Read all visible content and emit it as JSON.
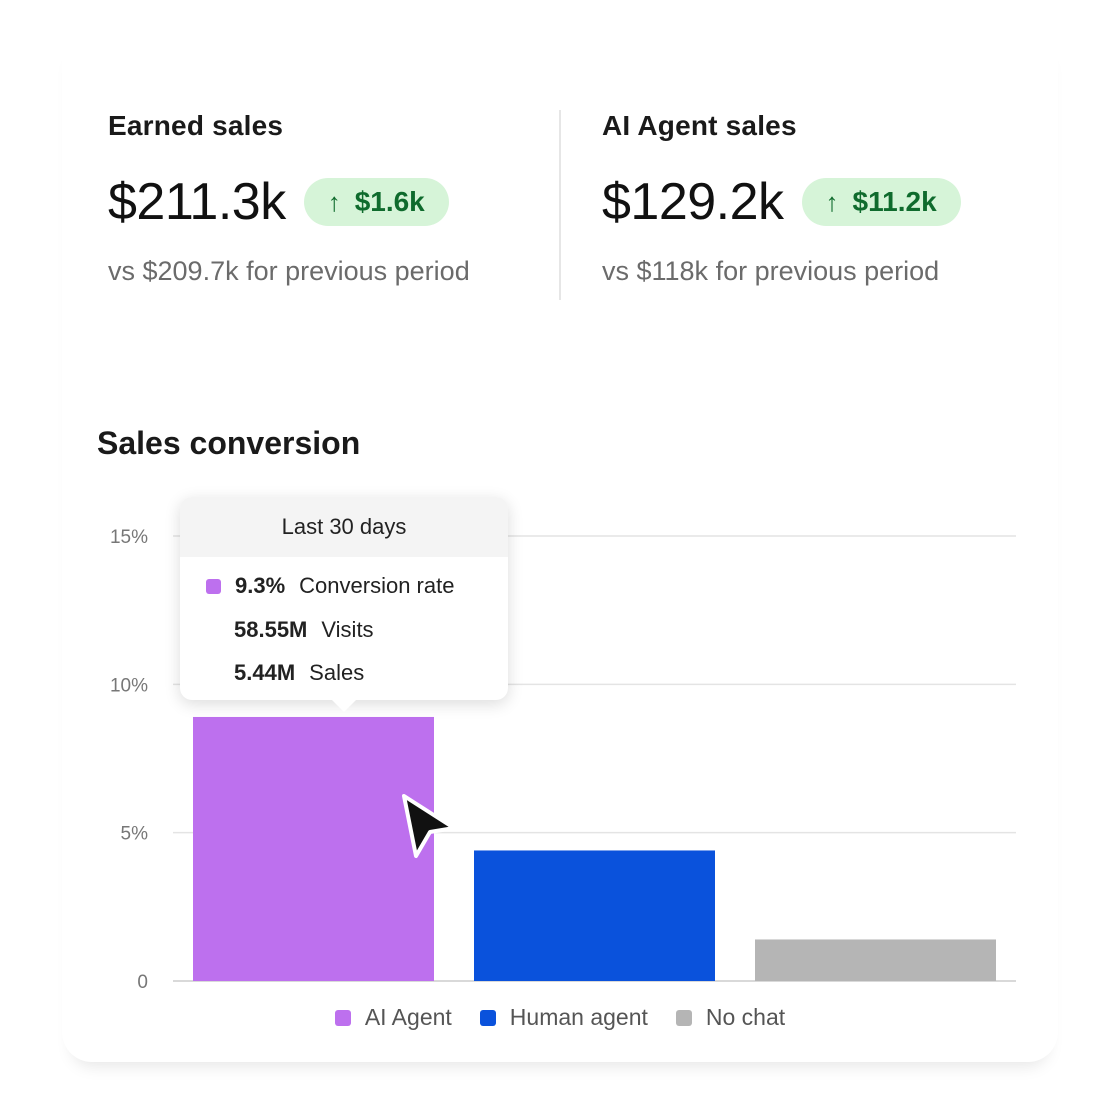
{
  "stats": [
    {
      "title": "Earned sales",
      "value": "$211.3k",
      "delta": "$1.6k",
      "comparison": "vs $209.7k for previous period"
    },
    {
      "title": "AI Agent sales",
      "value": "$129.2k",
      "delta": "$11.2k",
      "comparison": "vs $118k for previous period"
    }
  ],
  "section_title": "Sales conversion",
  "tooltip": {
    "header": "Last 30 days",
    "rows": [
      {
        "value": "9.3%",
        "label": "Conversion rate"
      },
      {
        "value": "58.55M",
        "label": "Visits"
      },
      {
        "value": "5.44M",
        "label": "Sales"
      }
    ]
  },
  "colors": {
    "ai_agent": "#bd70ee",
    "human_agent": "#0a52dc",
    "no_chat": "#b5b5b5",
    "badge_bg": "#d6f4d8",
    "badge_text": "#0f6b2d"
  },
  "icons": {
    "delta": "arrow-up-icon",
    "pointer": "mouse-cursor-icon"
  },
  "chart_data": {
    "type": "bar",
    "title": "Sales conversion",
    "categories": [
      "AI Agent",
      "Human agent",
      "No chat"
    ],
    "values": [
      8.9,
      4.4,
      1.4
    ],
    "colors": [
      "#bd70ee",
      "#0a52dc",
      "#b5b5b5"
    ],
    "ylim": [
      0,
      15
    ],
    "yticks": [
      0,
      5,
      10,
      15
    ],
    "ytick_labels": [
      "0",
      "5%",
      "10%",
      "15%"
    ],
    "grid": true,
    "legend": [
      "AI Agent",
      "Human agent",
      "No chat"
    ],
    "legend_position": "bottom"
  }
}
